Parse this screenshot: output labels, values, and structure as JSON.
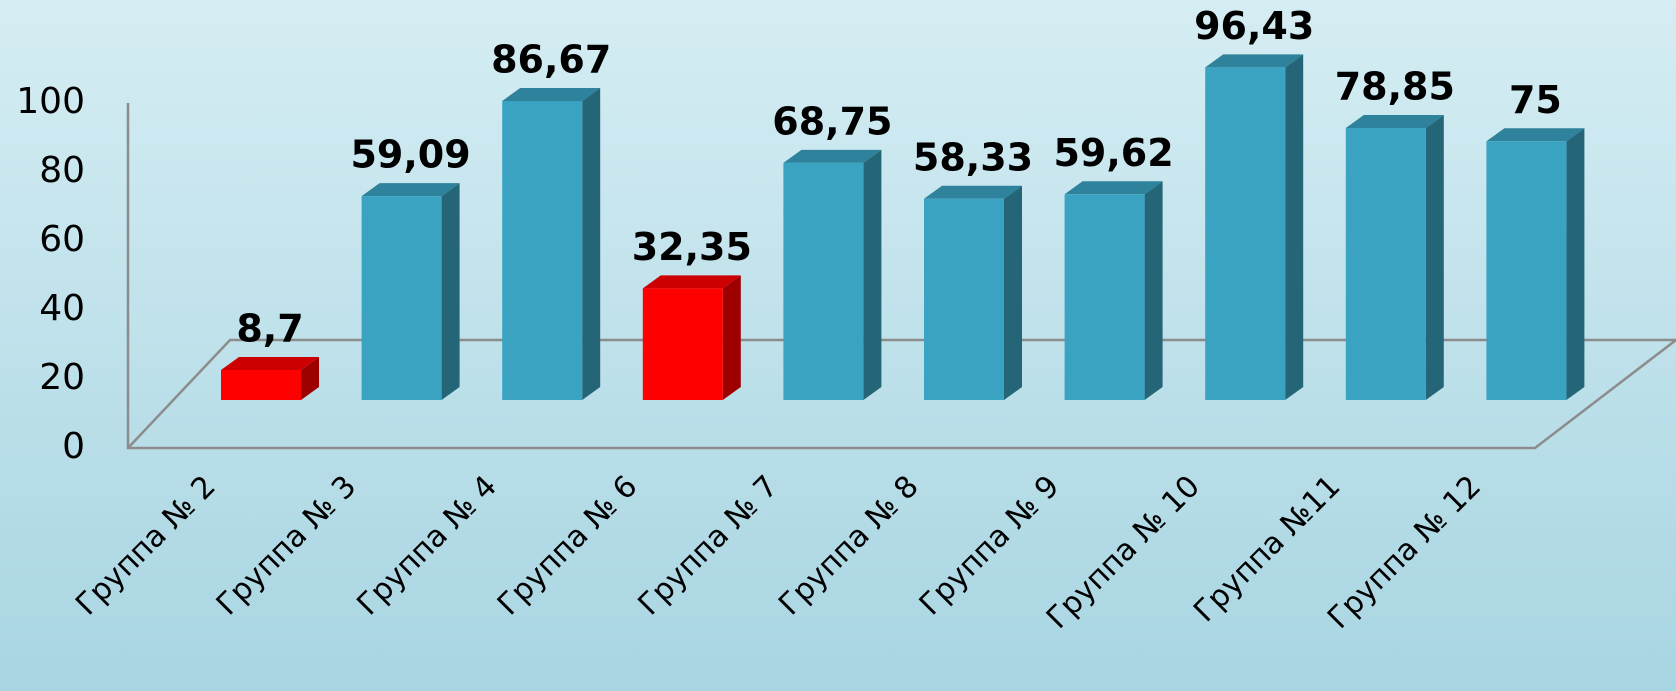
{
  "chart_data": {
    "type": "bar3d",
    "categories": [
      "Группа № 2",
      "Группа № 3",
      "Группа № 4",
      "Группа № 6",
      "Группа № 7",
      "Группа № 8",
      "Группа № 9",
      "Группа № 10",
      "Группа №11",
      "Группа № 12"
    ],
    "values": [
      8.7,
      59.09,
      86.67,
      32.35,
      68.75,
      58.33,
      59.62,
      96.43,
      78.85,
      75
    ],
    "value_labels": [
      "8,7",
      "59,09",
      "86,67",
      "32,35",
      "68,75",
      "58,33",
      "59,62",
      "96,43",
      "78,85",
      "75"
    ],
    "colors": [
      "#ff0000",
      "#3ba3c2",
      "#3ba3c2",
      "#ff0000",
      "#3ba3c2",
      "#3ba3c2",
      "#3ba3c2",
      "#3ba3c2",
      "#3ba3c2",
      "#3ba3c2"
    ],
    "ylim": [
      0,
      100
    ],
    "yticks": [
      0,
      20,
      40,
      60,
      80,
      100
    ],
    "grid": false
  }
}
